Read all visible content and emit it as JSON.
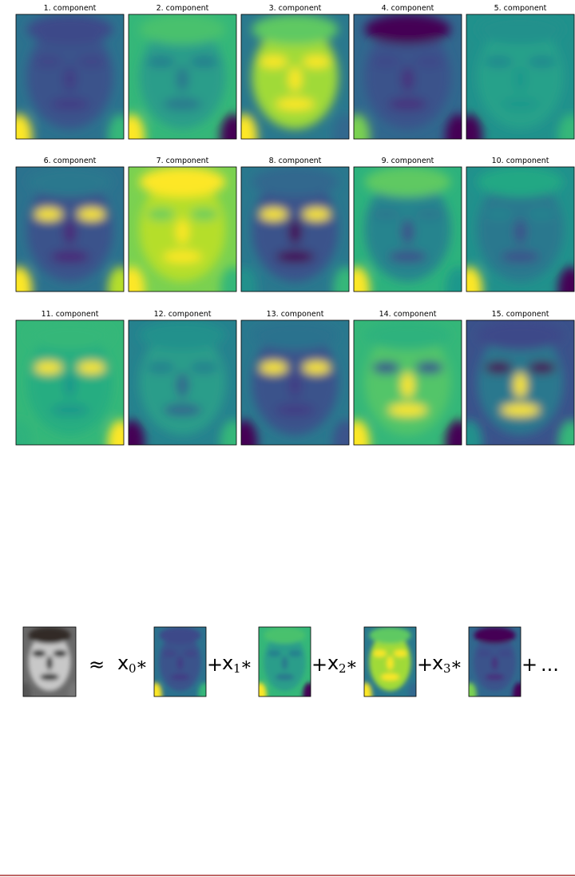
{
  "components": [
    {
      "title": "1. component"
    },
    {
      "title": "2. component"
    },
    {
      "title": "3. component"
    },
    {
      "title": "4. component"
    },
    {
      "title": "5. component"
    },
    {
      "title": "6. component"
    },
    {
      "title": "7. component"
    },
    {
      "title": "8. component"
    },
    {
      "title": "9. component"
    },
    {
      "title": "10. component"
    },
    {
      "title": "11. component"
    },
    {
      "title": "12. component"
    },
    {
      "title": "13. component"
    },
    {
      "title": "14. component"
    },
    {
      "title": "15. component"
    }
  ],
  "equation": {
    "approx": "≈",
    "terms": [
      {
        "var": "x",
        "sub": "0",
        "op": "∗"
      },
      {
        "var": "x",
        "sub": "1",
        "op": "∗"
      },
      {
        "var": "x",
        "sub": "2",
        "op": "∗"
      },
      {
        "var": "x",
        "sub": "3",
        "op": "∗"
      }
    ],
    "plus": "+",
    "ellipsis": "..."
  }
}
